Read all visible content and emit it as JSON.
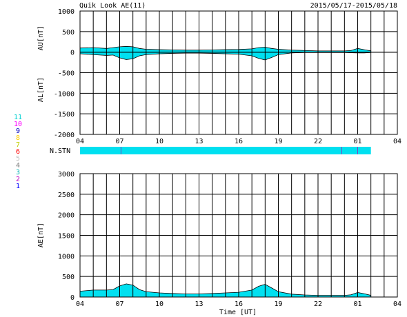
{
  "header": {
    "title": "Quik Look AE(11)",
    "date_range": "2015/05/17-2015/05/18"
  },
  "legend": {
    "numbers": [
      "11",
      "10",
      "9",
      "8",
      "7",
      "6",
      "5",
      "4",
      "3",
      "2",
      "1"
    ],
    "colors": [
      "#00d0d0",
      "#ff00ff",
      "#0000c0",
      "#ffd000",
      "#c0d000",
      "#ff0000",
      "#c0c0c0",
      "#808080",
      "#00b0b0",
      "#c000c0",
      "#0000ff"
    ]
  },
  "chart_data": [
    {
      "type": "area",
      "panel": "AU/AL",
      "ylabel_top": "AU[nT]",
      "ylabel_bottom": "AL[nT]",
      "ylim": [
        -2000,
        1000
      ],
      "yticks": [
        1000,
        500,
        0,
        -500,
        -1000,
        -1500,
        -2000
      ],
      "xlim": [
        4,
        28
      ],
      "xtick_labels": [
        "04",
        "07",
        "10",
        "13",
        "16",
        "19",
        "22",
        "01",
        "04"
      ],
      "fill_color": "#00e0f0",
      "x": [
        4.0,
        5.0,
        6.0,
        6.5,
        7.0,
        7.5,
        8.0,
        8.5,
        9.0,
        10.0,
        11.0,
        12.0,
        13.0,
        14.0,
        15.0,
        16.0,
        17.0,
        17.5,
        18.0,
        18.5,
        19.0,
        20.0,
        21.0,
        22.0,
        23.0,
        24.0,
        24.5,
        25.0,
        25.5,
        26.0
      ],
      "au": [
        100,
        110,
        90,
        110,
        130,
        140,
        130,
        90,
        70,
        60,
        55,
        50,
        50,
        55,
        60,
        65,
        80,
        110,
        120,
        90,
        70,
        50,
        40,
        30,
        30,
        30,
        40,
        90,
        60,
        30
      ],
      "al": [
        -40,
        -60,
        -80,
        -70,
        -140,
        -180,
        -160,
        -90,
        -60,
        -40,
        -30,
        -25,
        -25,
        -30,
        -40,
        -50,
        -90,
        -150,
        -190,
        -130,
        -60,
        -20,
        -10,
        -10,
        -10,
        -10,
        -15,
        -20,
        -20,
        -10
      ]
    },
    {
      "type": "bar",
      "panel": "N.STN",
      "ylabel": "N.STN",
      "x_start": 4,
      "x_end": 26,
      "fill_color": "#00e0f0",
      "marker_color": "#8040c0",
      "markers_x": [
        7.1,
        23.8,
        25.0
      ]
    },
    {
      "type": "area",
      "panel": "AE",
      "ylabel": "AE[nT]",
      "xlabel": "Time [UT]",
      "ylim": [
        0,
        3000
      ],
      "yticks": [
        3000,
        2500,
        2000,
        1500,
        1000,
        500,
        0
      ],
      "xlim": [
        4,
        28
      ],
      "xtick_labels": [
        "04",
        "07",
        "10",
        "13",
        "16",
        "19",
        "22",
        "01",
        "04"
      ],
      "fill_color": "#00e0f0",
      "x": [
        4.0,
        5.0,
        6.0,
        6.5,
        7.0,
        7.5,
        8.0,
        8.5,
        9.0,
        10.0,
        11.0,
        12.0,
        13.0,
        14.0,
        15.0,
        16.0,
        17.0,
        17.5,
        18.0,
        18.5,
        19.0,
        20.0,
        21.0,
        22.0,
        23.0,
        24.0,
        24.5,
        25.0,
        25.5,
        26.0
      ],
      "values": [
        140,
        170,
        170,
        180,
        270,
        320,
        290,
        180,
        130,
        100,
        85,
        75,
        75,
        85,
        100,
        115,
        170,
        260,
        310,
        220,
        130,
        70,
        50,
        40,
        40,
        40,
        55,
        110,
        80,
        40
      ]
    }
  ]
}
